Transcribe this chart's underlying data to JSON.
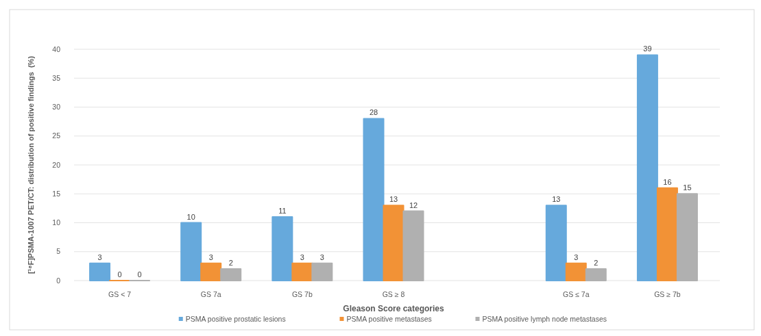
{
  "chart_data": {
    "type": "bar",
    "categories": [
      "GS < 7",
      "GS 7a",
      "GS 7b",
      "GS ≥ 8",
      null,
      "GS ≤ 7a",
      "GS ≥ 7b"
    ],
    "series": [
      {
        "name": "PSMA positive prostatic lesions",
        "color": "#66a9dc",
        "values": [
          3,
          10,
          11,
          28,
          null,
          13,
          39
        ]
      },
      {
        "name": "PSMA positive metastases",
        "color": "#f29236",
        "values": [
          0,
          3,
          3,
          13,
          null,
          3,
          16
        ]
      },
      {
        "name": "PSMA positive lymph node metastases",
        "color": "#b0b0b0",
        "values": [
          0,
          2,
          3,
          12,
          null,
          2,
          15
        ]
      }
    ],
    "xlabel": "Gleason Score categories",
    "ylabel": "[¹⁸F]PSMA-1007 PET/CT: distribution of positive findings  (%)",
    "ylim": [
      0,
      40
    ],
    "yticks": [
      0,
      5,
      10,
      15,
      20,
      25,
      30,
      35,
      40
    ],
    "grid": "y",
    "legend": "bottom",
    "data_labels": true
  }
}
